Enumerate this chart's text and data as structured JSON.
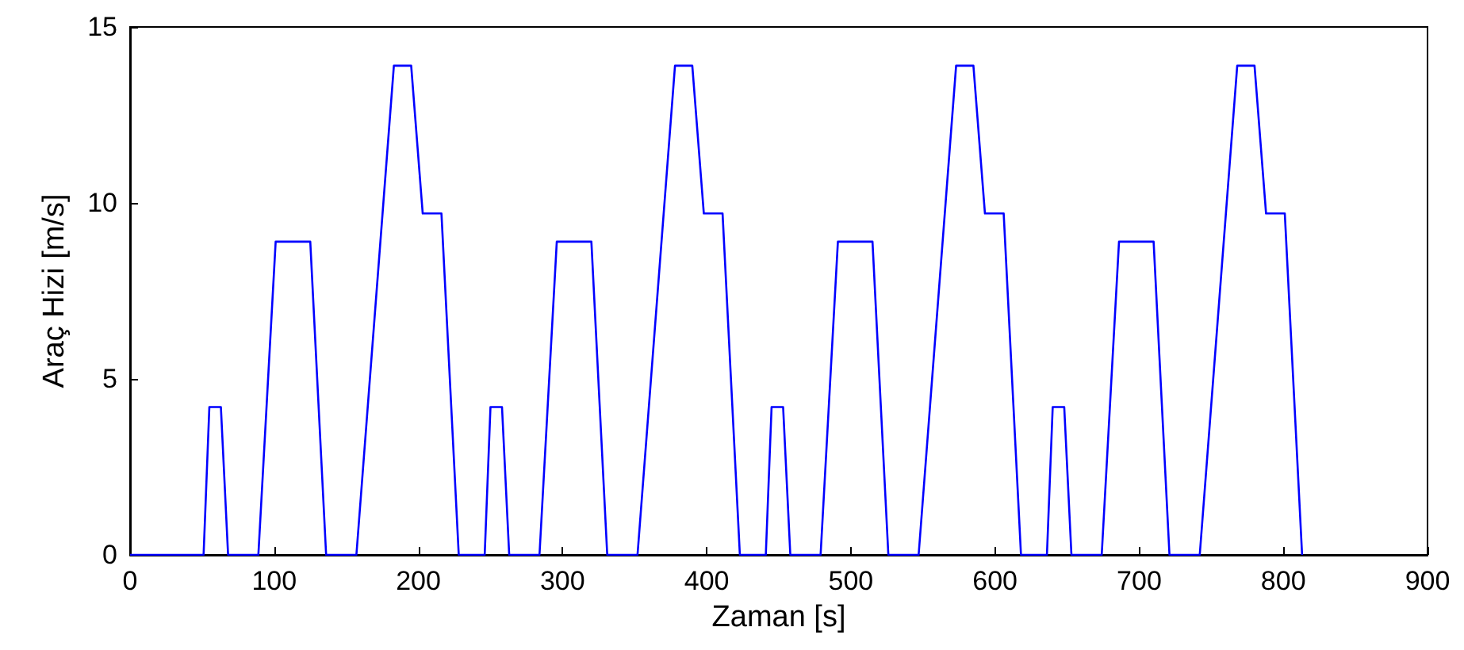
{
  "chart_data": {
    "type": "line",
    "xlabel": "Zaman [s]",
    "ylabel": "Araç Hizi [m/s]",
    "series": [
      {
        "color": "#0000ff",
        "x": [
          0,
          51,
          55,
          63,
          68,
          89,
          101,
          125,
          136,
          157,
          183,
          195,
          203,
          216,
          228,
          246,
          250,
          258,
          263,
          284,
          296,
          320,
          331,
          352,
          378,
          390,
          398,
          411,
          423,
          441,
          445,
          453,
          458,
          479,
          491,
          515,
          526,
          547,
          573,
          585,
          593,
          606,
          618,
          636,
          640,
          648,
          653,
          674,
          686,
          710,
          721,
          742,
          768,
          780,
          788,
          801,
          813
        ],
        "values": [
          0,
          0,
          4.2,
          4.2,
          0,
          0,
          8.9,
          8.9,
          0,
          0,
          13.9,
          13.9,
          9.7,
          9.7,
          0,
          0,
          4.2,
          4.2,
          0,
          0,
          8.9,
          8.9,
          0,
          0,
          13.9,
          13.9,
          9.7,
          9.7,
          0,
          0,
          4.2,
          4.2,
          0,
          0,
          8.9,
          8.9,
          0,
          0,
          13.9,
          13.9,
          9.7,
          9.7,
          0,
          0,
          4.2,
          4.2,
          0,
          0,
          8.9,
          8.9,
          0,
          0,
          13.9,
          13.9,
          9.7,
          9.7,
          0
        ]
      }
    ],
    "xlim": [
      0,
      900
    ],
    "xticks": [
      0,
      100,
      200,
      300,
      400,
      500,
      600,
      700,
      800,
      900
    ],
    "ylim": [
      0,
      15
    ],
    "yticks": [
      0,
      5,
      10,
      15
    ],
    "grid": false,
    "marker": "none",
    "line_style": "solid"
  }
}
